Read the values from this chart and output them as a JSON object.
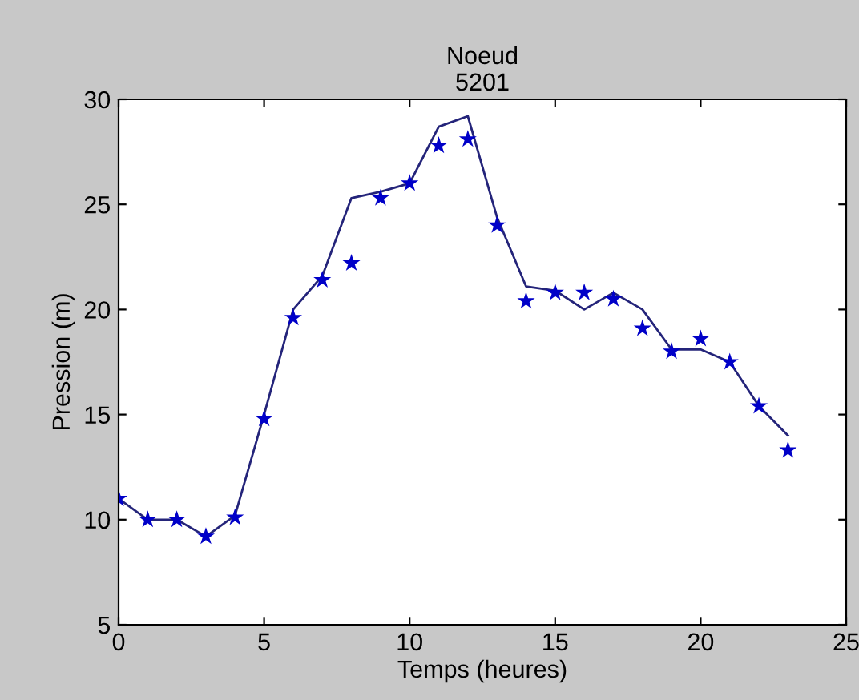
{
  "chart_data": {
    "type": "line",
    "title": "Noeud",
    "subtitle": "5201",
    "xlabel": "Temps (heures)",
    "ylabel": "Pression (m)",
    "xlim": [
      0,
      25
    ],
    "xticks": [
      0,
      5,
      10,
      15,
      20,
      25
    ],
    "ylim": [
      5,
      30
    ],
    "yticks": [
      5,
      10,
      15,
      20,
      25,
      30
    ],
    "grid": false,
    "x": [
      0,
      1,
      2,
      3,
      4,
      5,
      6,
      7,
      8,
      9,
      10,
      11,
      12,
      13,
      14,
      15,
      16,
      17,
      18,
      19,
      20,
      21,
      22,
      23
    ],
    "series": [
      {
        "color": "#24247a",
        "marker": "none",
        "line_style": "solid",
        "values": [
          11.0,
          10.0,
          10.0,
          9.2,
          10.2,
          15.0,
          20.0,
          21.6,
          25.3,
          25.6,
          26.0,
          28.7,
          29.2,
          24.4,
          21.1,
          20.9,
          20.0,
          20.8,
          20.0,
          18.1,
          18.1,
          17.5,
          15.4,
          14.0
        ]
      },
      {
        "type": "scatter",
        "color": "#0000c8",
        "marker": "star",
        "values": [
          11.0,
          10.0,
          10.0,
          9.2,
          10.1,
          14.8,
          19.6,
          21.4,
          22.2,
          25.3,
          26.0,
          27.8,
          28.1,
          24.0,
          20.4,
          20.8,
          20.8,
          20.5,
          19.1,
          18.0,
          18.6,
          17.5,
          15.4,
          13.3
        ]
      }
    ]
  }
}
